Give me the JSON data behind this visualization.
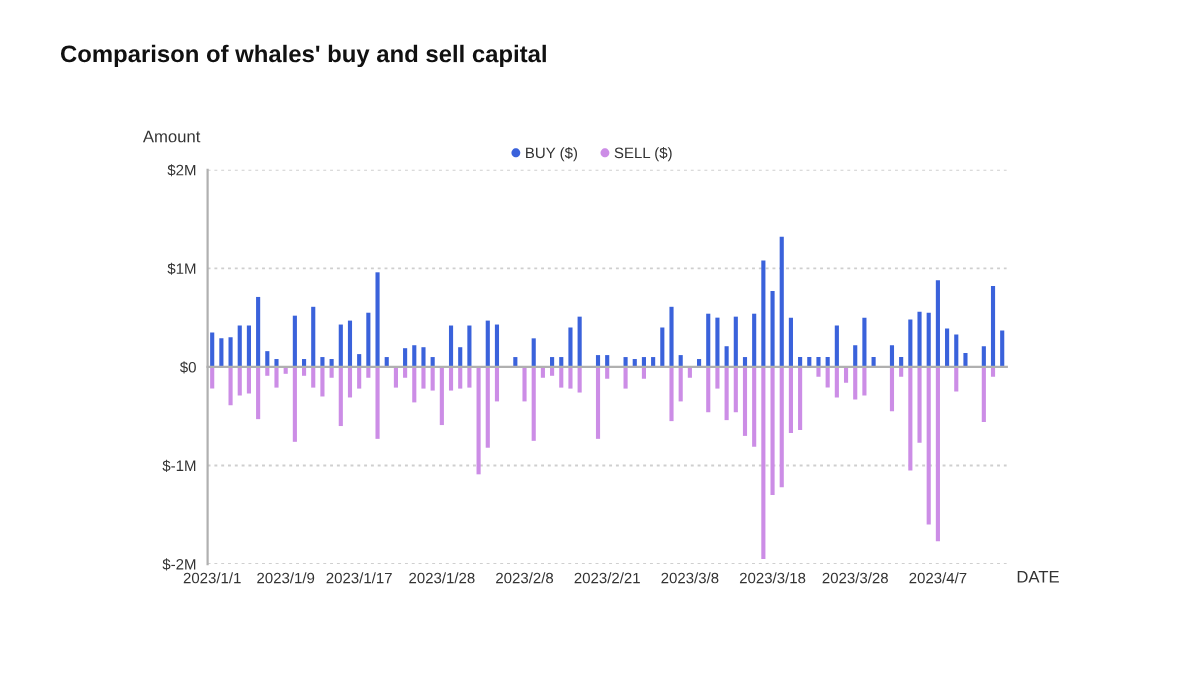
{
  "chart_data": {
    "type": "bar",
    "title": "Comparison of whales' buy and sell capital",
    "xlabel": "DATE",
    "ylabel": "Amount",
    "categories": [
      "2023/1/1",
      null,
      null,
      null,
      null,
      null,
      null,
      null,
      "2023/1/9",
      null,
      null,
      null,
      null,
      null,
      null,
      null,
      "2023/1/17",
      null,
      null,
      null,
      null,
      null,
      null,
      null,
      null,
      "2023/1/28",
      null,
      null,
      null,
      null,
      null,
      null,
      null,
      null,
      "2023/2/8",
      null,
      null,
      null,
      null,
      null,
      null,
      null,
      null,
      "2023/2/21",
      null,
      null,
      null,
      null,
      null,
      null,
      null,
      null,
      "2023/3/8",
      null,
      null,
      null,
      null,
      null,
      null,
      null,
      null,
      "2023/3/18",
      null,
      null,
      null,
      null,
      null,
      null,
      null,
      null,
      "2023/3/28",
      null,
      null,
      null,
      null,
      null,
      null,
      null,
      null,
      "2023/4/7",
      null,
      null,
      null,
      null,
      null,
      null,
      null
    ],
    "series": [
      {
        "name": "BUY ($)",
        "color": "#3a62db",
        "values": [
          0.35,
          0.29,
          0.3,
          0.42,
          0.42,
          0.71,
          0.16,
          0.08,
          null,
          0.52,
          0.08,
          0.61,
          0.1,
          0.08,
          0.43,
          0.47,
          0.13,
          0.55,
          0.96,
          0.1,
          null,
          0.19,
          0.22,
          0.2,
          0.1,
          null,
          0.42,
          0.2,
          0.42,
          null,
          0.47,
          0.43,
          null,
          0.1,
          null,
          0.29,
          null,
          0.1,
          0.1,
          0.4,
          0.51,
          null,
          0.12,
          0.12,
          null,
          0.1,
          0.08,
          0.1,
          0.1,
          0.4,
          0.61,
          0.12,
          null,
          0.08,
          0.54,
          0.5,
          0.21,
          0.51,
          0.1,
          0.54,
          1.08,
          0.77,
          1.32,
          0.5,
          0.1,
          0.1,
          0.1,
          0.1,
          0.42,
          null,
          0.22,
          0.5,
          0.1,
          null,
          0.22,
          0.1,
          0.48,
          0.56,
          0.55,
          0.88,
          0.39,
          0.33,
          0.14,
          null,
          0.21,
          0.82,
          0.37
        ]
      },
      {
        "name": "SELL ($)",
        "color": "#cc8de6",
        "values": [
          -0.22,
          null,
          -0.39,
          -0.29,
          -0.27,
          -0.53,
          -0.09,
          -0.21,
          -0.07,
          -0.76,
          -0.09,
          -0.21,
          -0.3,
          -0.11,
          -0.6,
          -0.31,
          -0.22,
          -0.11,
          -0.73,
          null,
          -0.21,
          -0.11,
          -0.36,
          -0.22,
          -0.24,
          -0.59,
          -0.24,
          -0.22,
          -0.21,
          -1.09,
          -0.82,
          -0.35,
          null,
          null,
          -0.35,
          -0.75,
          -0.11,
          -0.09,
          -0.21,
          -0.22,
          -0.26,
          null,
          -0.73,
          -0.12,
          null,
          -0.22,
          null,
          -0.12,
          null,
          null,
          -0.55,
          -0.35,
          -0.11,
          null,
          -0.46,
          -0.22,
          -0.54,
          -0.46,
          -0.7,
          -0.81,
          -1.95,
          -1.3,
          -1.22,
          -0.67,
          -0.64,
          null,
          -0.1,
          -0.21,
          -0.31,
          -0.16,
          -0.33,
          -0.29,
          null,
          null,
          -0.45,
          -0.1,
          -1.05,
          -0.77,
          -1.6,
          -1.77,
          null,
          -0.25,
          null,
          null,
          -0.56,
          -0.1,
          null
        ]
      }
    ],
    "stacked": true,
    "ylim": [
      -2,
      2
    ],
    "yticks": [
      {
        "value": -2,
        "label": "$-2M"
      },
      {
        "value": -1,
        "label": "$-1M"
      },
      {
        "value": 0,
        "label": "$0"
      },
      {
        "value": 1,
        "label": "$1M"
      },
      {
        "value": 2,
        "label": "$2M"
      }
    ],
    "grid": "y",
    "legend": "top"
  }
}
